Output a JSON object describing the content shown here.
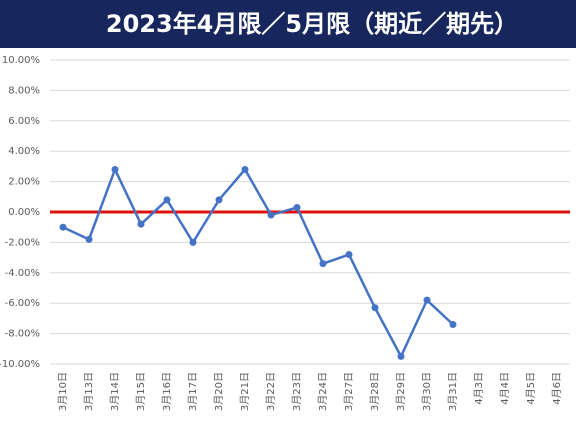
{
  "chart_data": {
    "type": "line",
    "title": "2023年4月限／5月限（期近／期先）",
    "categories": [
      "3月10日",
      "3月13日",
      "3月14日",
      "3月15日",
      "3月16日",
      "3月17日",
      "3月20日",
      "3月21日",
      "3月22日",
      "3月23日",
      "3月24日",
      "3月27日",
      "3月28日",
      "3月29日",
      "3月30日",
      "3月31日",
      "4月3日",
      "4月4日",
      "4月5日",
      "4月6日"
    ],
    "series": [
      {
        "color": "#4472c4",
        "values": [
          -1.0,
          -1.8,
          2.8,
          -0.8,
          0.8,
          -2.0,
          0.8,
          2.8,
          -0.2,
          0.3,
          -3.4,
          -2.8,
          -6.3,
          -9.5,
          -5.8,
          -7.4,
          null,
          null,
          null,
          null
        ]
      }
    ],
    "ylim": [
      -10,
      10
    ],
    "yticks": [
      {
        "value": -10,
        "label": "-10.00%"
      },
      {
        "value": -8,
        "label": "-8.00%"
      },
      {
        "value": -6,
        "label": "-6.00%"
      },
      {
        "value": -4,
        "label": "-4.00%"
      },
      {
        "value": -2,
        "label": "-2.00%"
      },
      {
        "value": 0,
        "label": "0.00%"
      },
      {
        "value": 2,
        "label": "2.00%"
      },
      {
        "value": 4,
        "label": "4.00%"
      },
      {
        "value": 6,
        "label": "6.00%"
      },
      {
        "value": 8,
        "label": "8.00%"
      },
      {
        "value": 10,
        "label": "10.00%"
      }
    ],
    "grid": true,
    "zero_line_color": "#e01010"
  }
}
